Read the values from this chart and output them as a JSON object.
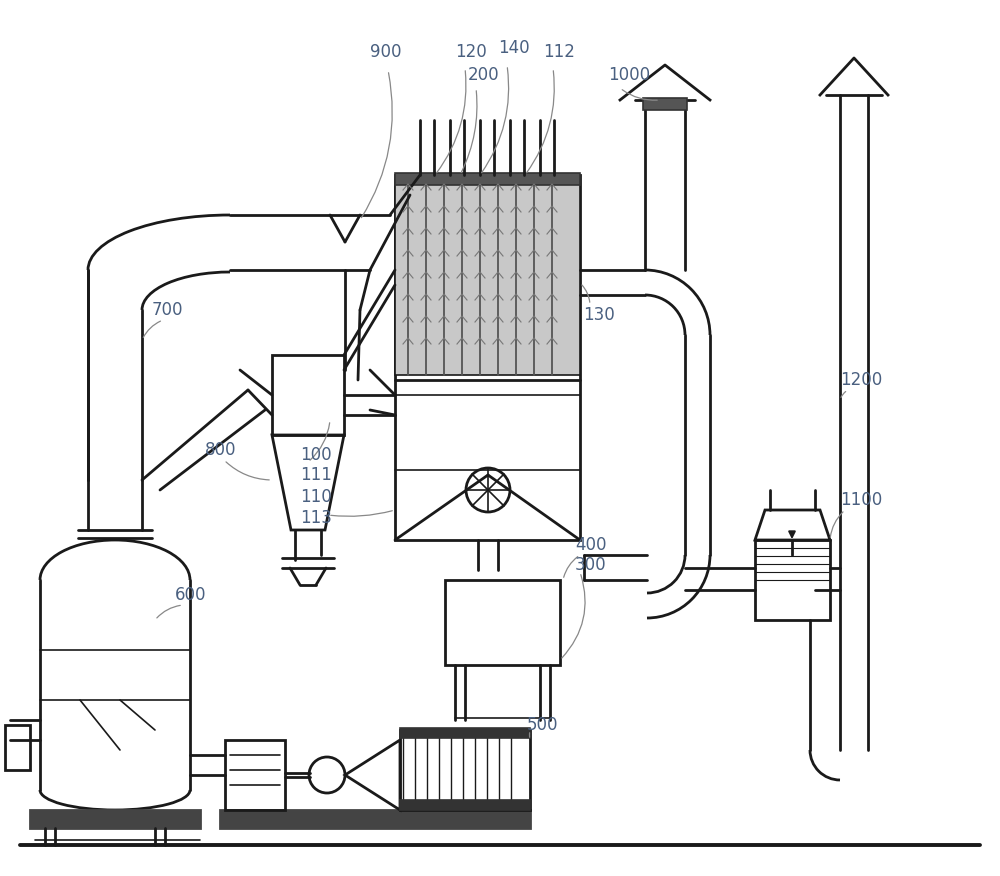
{
  "bg_color": "#ffffff",
  "line_color": "#1a1a1a",
  "label_color": "#4a6080",
  "figsize": [
    10.0,
    8.76
  ],
  "dpi": 100,
  "label_fs": 12
}
